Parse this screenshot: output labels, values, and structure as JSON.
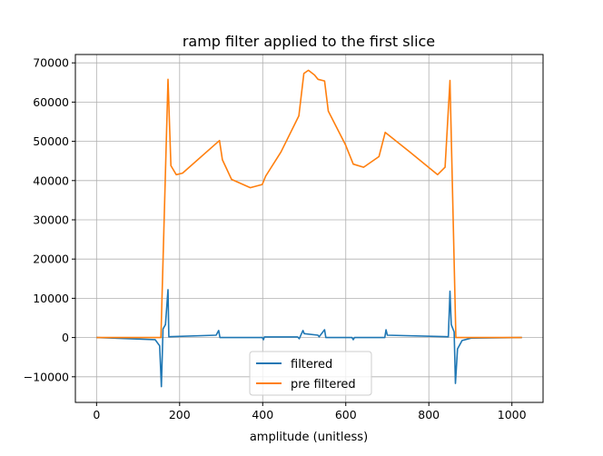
{
  "chart_data": {
    "type": "line",
    "title": "ramp filter applied to the first slice",
    "xlabel": "amplitude (unitless)",
    "ylabel": "",
    "xlim": [
      -51,
      1075
    ],
    "ylim": [
      -16530,
      72130
    ],
    "xticks": [
      0,
      200,
      400,
      600,
      800,
      1000
    ],
    "yticks": [
      -10000,
      0,
      10000,
      20000,
      30000,
      40000,
      50000,
      60000,
      70000
    ],
    "grid": true,
    "legend_position": "lower center",
    "series": [
      {
        "name": "filtered",
        "color": "#1f77b4",
        "points": [
          [
            0,
            0
          ],
          [
            141,
            -540
          ],
          [
            152,
            -2100
          ],
          [
            156,
            -12500
          ],
          [
            160,
            2200
          ],
          [
            166,
            3300
          ],
          [
            172,
            12200
          ],
          [
            174,
            200
          ],
          [
            288,
            600
          ],
          [
            294,
            1800
          ],
          [
            297,
            0
          ],
          [
            399,
            0
          ],
          [
            402,
            -540
          ],
          [
            404,
            150
          ],
          [
            484,
            150
          ],
          [
            488,
            -300
          ],
          [
            497,
            1800
          ],
          [
            500,
            1000
          ],
          [
            533,
            600
          ],
          [
            536,
            200
          ],
          [
            549,
            2000
          ],
          [
            552,
            0
          ],
          [
            615,
            0
          ],
          [
            618,
            -540
          ],
          [
            621,
            0
          ],
          [
            694,
            0
          ],
          [
            697,
            2000
          ],
          [
            700,
            600
          ],
          [
            847,
            200
          ],
          [
            851,
            11800
          ],
          [
            854,
            3300
          ],
          [
            861,
            1400
          ],
          [
            864,
            -11700
          ],
          [
            869,
            -2900
          ],
          [
            880,
            -770
          ],
          [
            902,
            -150
          ],
          [
            1024,
            0
          ]
        ]
      },
      {
        "name": "pre filtered",
        "color": "#ff7f0e",
        "points": [
          [
            0,
            0
          ],
          [
            155,
            0
          ],
          [
            172,
            65800
          ],
          [
            179,
            43800
          ],
          [
            192,
            41500
          ],
          [
            207,
            41900
          ],
          [
            296,
            50200
          ],
          [
            303,
            45300
          ],
          [
            325,
            40300
          ],
          [
            370,
            38200
          ],
          [
            399,
            39000
          ],
          [
            407,
            41100
          ],
          [
            444,
            47300
          ],
          [
            487,
            56500
          ],
          [
            499,
            67300
          ],
          [
            510,
            68100
          ],
          [
            525,
            66900
          ],
          [
            533,
            65800
          ],
          [
            549,
            65400
          ],
          [
            558,
            57700
          ],
          [
            599,
            49200
          ],
          [
            618,
            44200
          ],
          [
            643,
            43400
          ],
          [
            680,
            46100
          ],
          [
            695,
            52300
          ],
          [
            754,
            47300
          ],
          [
            821,
            41500
          ],
          [
            839,
            43400
          ],
          [
            851,
            65500
          ],
          [
            865,
            0
          ],
          [
            1024,
            0
          ]
        ]
      }
    ]
  }
}
